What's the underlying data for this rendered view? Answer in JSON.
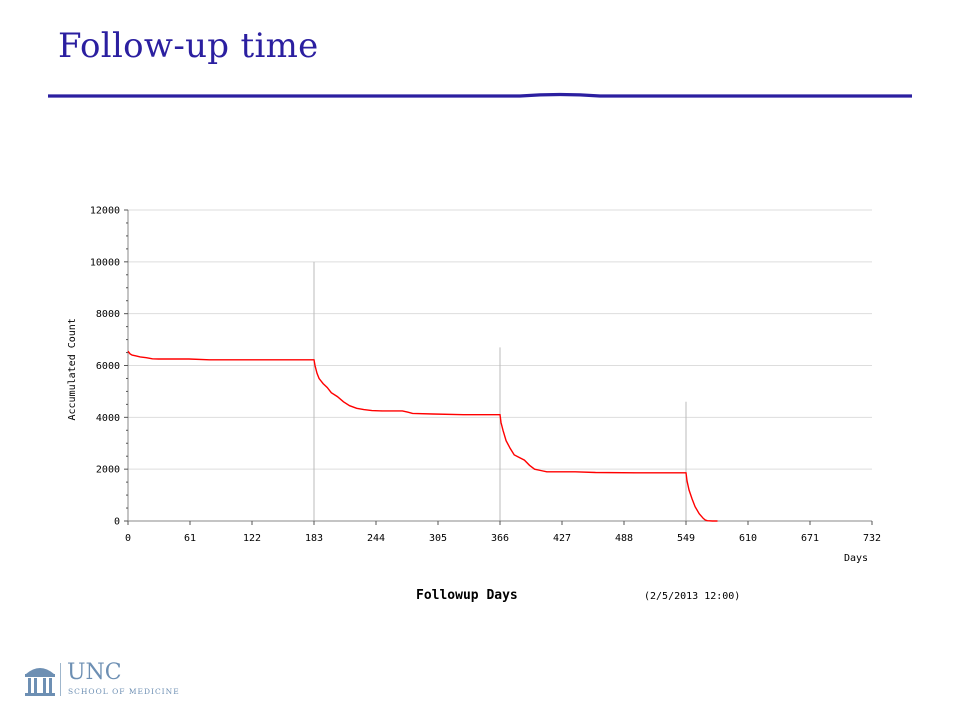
{
  "slide": {
    "title": "Follow-up time",
    "title_color": "#2b1fa0"
  },
  "chart_data": {
    "type": "line",
    "title": "",
    "xlabel": "Days",
    "ylabel": "Accumulated Count",
    "caption": "Followup Days",
    "timestamp": "(2/5/2013 12:00)",
    "xlim": [
      0,
      732
    ],
    "ylim": [
      0,
      12000
    ],
    "x_ticks": [
      0,
      61,
      122,
      183,
      244,
      305,
      366,
      427,
      488,
      549,
      610,
      671,
      732
    ],
    "y_ticks": [
      0,
      2000,
      4000,
      6000,
      8000,
      10000,
      12000
    ],
    "grid": true,
    "line_color": "#ff0000",
    "vertical_markers": [
      {
        "x": 183,
        "top": 10000
      },
      {
        "x": 366,
        "top": 6700
      },
      {
        "x": 549,
        "top": 4600
      }
    ],
    "series": [
      {
        "x": [
          0,
          2,
          4,
          8,
          12,
          18,
          24,
          30,
          60,
          80,
          100,
          120,
          150,
          183,
          184,
          186,
          188,
          192,
          196,
          200,
          206,
          212,
          218,
          225,
          232,
          240,
          250,
          270,
          275,
          280,
          300,
          330,
          366,
          367,
          369,
          372,
          376,
          380,
          385,
          390,
          395,
          400,
          406,
          412,
          418,
          424,
          440,
          460,
          500,
          540,
          549,
          550,
          552,
          555,
          558,
          562,
          566,
          568,
          570,
          575,
          580
        ],
        "y": [
          6550,
          6450,
          6400,
          6370,
          6330,
          6300,
          6260,
          6250,
          6250,
          6220,
          6220,
          6220,
          6220,
          6220,
          6000,
          5700,
          5500,
          5300,
          5150,
          4950,
          4800,
          4600,
          4450,
          4350,
          4300,
          4260,
          4250,
          4250,
          4200,
          4150,
          4130,
          4100,
          4100,
          3800,
          3500,
          3100,
          2800,
          2550,
          2450,
          2350,
          2150,
          2000,
          1950,
          1900,
          1900,
          1900,
          1900,
          1870,
          1860,
          1860,
          1860,
          1550,
          1200,
          850,
          550,
          280,
          100,
          40,
          10,
          0,
          0
        ]
      }
    ]
  },
  "logo": {
    "main": "UNC",
    "sub": "SCHOOL OF MEDICINE",
    "color": "#6d8fb3"
  }
}
